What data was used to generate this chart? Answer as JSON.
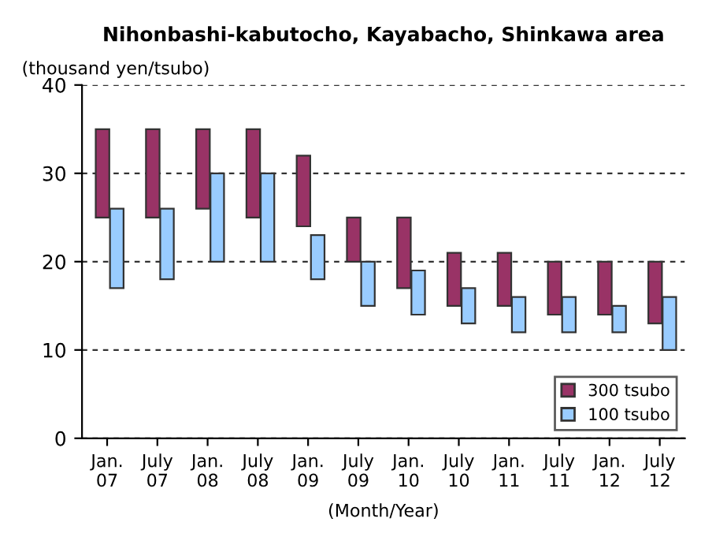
{
  "chart_data": {
    "type": "bar",
    "title": "Nihonbashi-kabutocho, Kayabacho, Shinkawa area",
    "ylabel": "(thousand yen/tsubo)",
    "xlabel": "(Month/Year)",
    "categories": [
      "Jan.\n07",
      "July\n07",
      "Jan.\n08",
      "July\n08",
      "Jan.\n09",
      "July\n09",
      "Jan.\n10",
      "July\n10",
      "Jan.\n11",
      "July\n11",
      "Jan.\n12",
      "July\n12"
    ],
    "series": [
      {
        "name": "300 tsubo",
        "color": "#993366",
        "base": [
          25,
          25,
          26,
          25,
          24,
          20,
          17,
          15,
          15,
          14,
          14,
          13
        ],
        "values": [
          10,
          10,
          9,
          10,
          8,
          5,
          8,
          6,
          6,
          6,
          6,
          7
        ]
      },
      {
        "name": "100 tsubo",
        "color": "#99ccff",
        "base": [
          17,
          18,
          20,
          20,
          18,
          15,
          14,
          13,
          12,
          12,
          12,
          10
        ],
        "values": [
          9,
          8,
          10,
          10,
          5,
          5,
          5,
          4,
          4,
          4,
          3,
          6
        ]
      }
    ],
    "ylim": [
      0,
      40
    ],
    "yticks": [
      0,
      10,
      20,
      30,
      40
    ],
    "grid": "y",
    "legend": "bottom right"
  }
}
